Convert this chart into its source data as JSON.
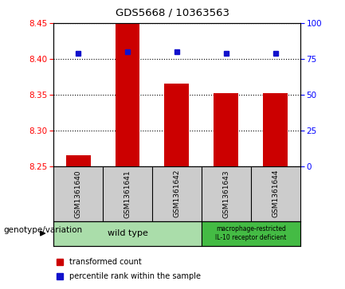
{
  "title": "GDS5668 / 10363563",
  "samples": [
    "GSM1361640",
    "GSM1361641",
    "GSM1361642",
    "GSM1361643",
    "GSM1361644"
  ],
  "bar_values": [
    8.265,
    8.45,
    8.365,
    8.352,
    8.352
  ],
  "percentile_values": [
    79,
    80,
    80,
    79,
    79
  ],
  "ylim_left": [
    8.25,
    8.45
  ],
  "ylim_right": [
    0,
    100
  ],
  "yticks_left": [
    8.25,
    8.3,
    8.35,
    8.4,
    8.45
  ],
  "yticks_right": [
    0,
    25,
    50,
    75,
    100
  ],
  "bar_color": "#cc0000",
  "dot_color": "#1111cc",
  "bar_width": 0.5,
  "bg_plot": "#ffffff",
  "sample_box_color": "#cccccc",
  "wild_type_color": "#aaddaa",
  "mutant_color": "#44bb44",
  "wild_type_label": "wild type",
  "mutant_label": "macrophage-restricted\nIL-10 receptor deficient",
  "legend_bar_label": "transformed count",
  "legend_dot_label": "percentile rank within the sample",
  "genotype_label": "genotype/variation"
}
